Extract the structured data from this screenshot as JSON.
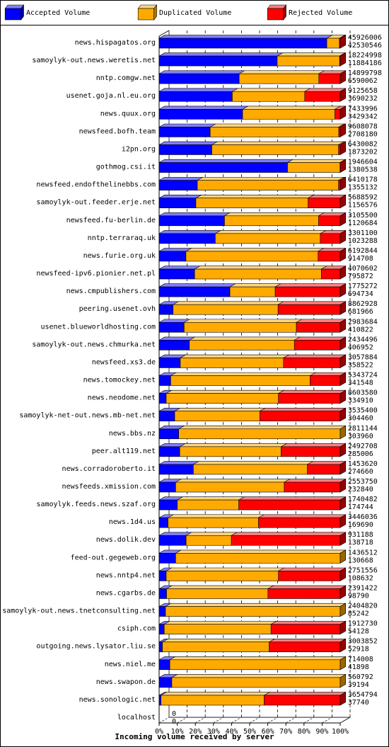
{
  "legend": [
    {
      "label": "Accepted Volume",
      "color": "#0000ff"
    },
    {
      "label": "Duplicated Volume",
      "color": "#ffaa00"
    },
    {
      "label": "Rejected Volume",
      "color": "#ff0000"
    }
  ],
  "chart_data": {
    "type": "bar",
    "orientation": "horizontal",
    "stacked": true,
    "xlabel": "Incoming volume received by server",
    "x_ticks": [
      "0%",
      "10%",
      "20%",
      "30%",
      "40%",
      "50%",
      "60%",
      "70%",
      "80%",
      "90%",
      "100%"
    ],
    "xlim": [
      0,
      100
    ],
    "categories": [
      "news.hispagatos.org",
      "samoylyk-out.news.weretis.net",
      "nntp.comgw.net",
      "usenet.goja.nl.eu.org",
      "news.quux.org",
      "newsfeed.bofh.team",
      "i2pn.org",
      "gothmog.csi.it",
      "newsfeed.endofthelinebbs.com",
      "samoylyk-out.feeder.erje.net",
      "newsfeed.fu-berlin.de",
      "nntp.terraraq.uk",
      "news.furie.org.uk",
      "newsfeed-ipv6.pionier.net.pl",
      "news.cmpublishers.com",
      "peering.usenet.ovh",
      "usenet.blueworldhosting.com",
      "samoylyk-out.news.chmurka.net",
      "newsfeed.xs3.de",
      "news.tomockey.net",
      "news.neodome.net",
      "samoylyk-net-out.news.mb-net.net",
      "news.bbs.nz",
      "peer.alt119.net",
      "news.corradoroberto.it",
      "newsfeeds.xmission.com",
      "samoylyk.feeds.news.szaf.org",
      "news.1d4.us",
      "news.dolik.dev",
      "feed-out.gegeweb.org",
      "news.nntp4.net",
      "news.cgarbs.de",
      "samoylyk-out.news.tnetconsulting.net",
      "csiph.com",
      "outgoing.news.lysator.liu.se",
      "news.niel.me",
      "news.swapon.de",
      "news.sonologic.net",
      "localhost"
    ],
    "total_volume": [
      "45926006",
      "18224998",
      "14899798",
      "9125658",
      "7433996",
      "9608078",
      "6430082",
      "1946604",
      "6410178",
      "5688592",
      "3105500",
      "3301100",
      "6192844",
      "4070602",
      "1775272",
      "8862928",
      "2983684",
      "2434496",
      "3057884",
      "5343724",
      "8603580",
      "3535400",
      "2811144",
      "2492708",
      "1453620",
      "2553750",
      "1740482",
      "3446036",
      "931188",
      "1436512",
      "2751556",
      "2391422",
      "2404820",
      "1912730",
      "3003852",
      "714008",
      "560792",
      "3654794",
      "0"
    ],
    "accepted_volume": [
      "42530546",
      "11884186",
      "6590062",
      "3690232",
      "3429342",
      "2708180",
      "1873202",
      "1380538",
      "1355132",
      "1156576",
      "1120684",
      "1023288",
      "914708",
      "795872",
      "694734",
      "681966",
      "410822",
      "406952",
      "358522",
      "341548",
      "334910",
      "304460",
      "303960",
      "285006",
      "274660",
      "232840",
      "174744",
      "169690",
      "138718",
      "130668",
      "108632",
      "98790",
      "85242",
      "54128",
      "52918",
      "41898",
      "39194",
      "37740",
      "0"
    ],
    "series": [
      {
        "name": "Accepted Volume",
        "values": [
          92.6,
          65.2,
          44.2,
          40.4,
          46.1,
          28.2,
          29.1,
          70.9,
          21.1,
          20.3,
          36.1,
          31.0,
          14.8,
          19.6,
          39.1,
          7.7,
          13.8,
          16.7,
          11.7,
          6.4,
          3.9,
          8.6,
          10.8,
          11.4,
          18.9,
          9.1,
          10.0,
          4.9,
          14.9,
          9.1,
          3.9,
          4.1,
          3.5,
          2.8,
          1.8,
          5.9,
          7.0,
          1.0,
          0
        ]
      },
      {
        "name": "Duplicated Volume",
        "values": [
          7.0,
          34.5,
          44.0,
          40.0,
          51.0,
          71.0,
          70.0,
          29.0,
          78.0,
          62.0,
          52.0,
          58.0,
          73.0,
          70.0,
          25.0,
          58.0,
          62.0,
          58.0,
          57.0,
          77.0,
          62.0,
          47.0,
          89.2,
          56.0,
          63.0,
          60.0,
          34.0,
          50.0,
          25.0,
          90.9,
          62.0,
          56.0,
          96.5,
          59.0,
          59.0,
          94.1,
          93.0,
          57.0,
          0
        ]
      },
      {
        "name": "Rejected Volume",
        "values": [
          0.4,
          0.3,
          11.8,
          19.6,
          2.9,
          0.8,
          0.9,
          0.1,
          0.9,
          17.7,
          11.9,
          11.0,
          12.2,
          10.4,
          35.9,
          34.3,
          24.2,
          25.3,
          31.3,
          16.6,
          34.1,
          44.4,
          0,
          32.6,
          18.1,
          30.9,
          56.0,
          45.1,
          60.1,
          0,
          34.1,
          39.9,
          0,
          38.2,
          39.2,
          0,
          0,
          42.0,
          0
        ]
      }
    ]
  }
}
